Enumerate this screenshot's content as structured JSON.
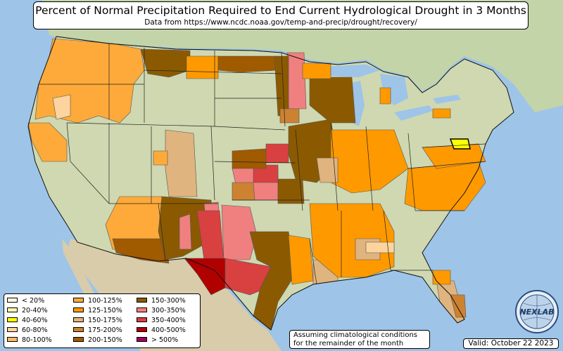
{
  "title": "Percent of Normal Precipitation Required to End Current Hydrological Drought in 3 Months",
  "subtitle": "Data from https://www.ncdc.noaa.gov/temp-and-precip/drought/recovery/",
  "legend": [
    {
      "label": "< 20%",
      "color": "#ffffe0"
    },
    {
      "label": "20-40%",
      "color": "#fff6b4"
    },
    {
      "label": "40-60%",
      "color": "#ffff00"
    },
    {
      "label": "60-80%",
      "color": "#fdd49e"
    },
    {
      "label": "80-100%",
      "color": "#f7b967"
    },
    {
      "label": "100-125%",
      "color": "#fdaa3a"
    },
    {
      "label": "125-150%",
      "color": "#ff9900"
    },
    {
      "label": "150-175%",
      "color": "#e0b47e"
    },
    {
      "label": "175-200%",
      "color": "#cd8232"
    },
    {
      "label": "200-150%",
      "color": "#a05a00"
    },
    {
      "label": "150-300%",
      "color": "#8b5a00"
    },
    {
      "label": "300-350%",
      "color": "#f08080"
    },
    {
      "label": "350-400%",
      "color": "#d94040"
    },
    {
      "label": "400-500%",
      "color": "#b00000"
    },
    {
      "label": "> 500%",
      "color": "#a0005a"
    }
  ],
  "note": [
    "Assuming climatological conditions",
    "for the remainder of the month"
  ],
  "valid": "Valid: October 22 2023",
  "logo_text": "NEXLAB",
  "colors": {
    "ocean": "#9ec4e8",
    "land": "#cfd8b0",
    "canada": "#c3d4a8",
    "mexico": "#d9ccab"
  }
}
